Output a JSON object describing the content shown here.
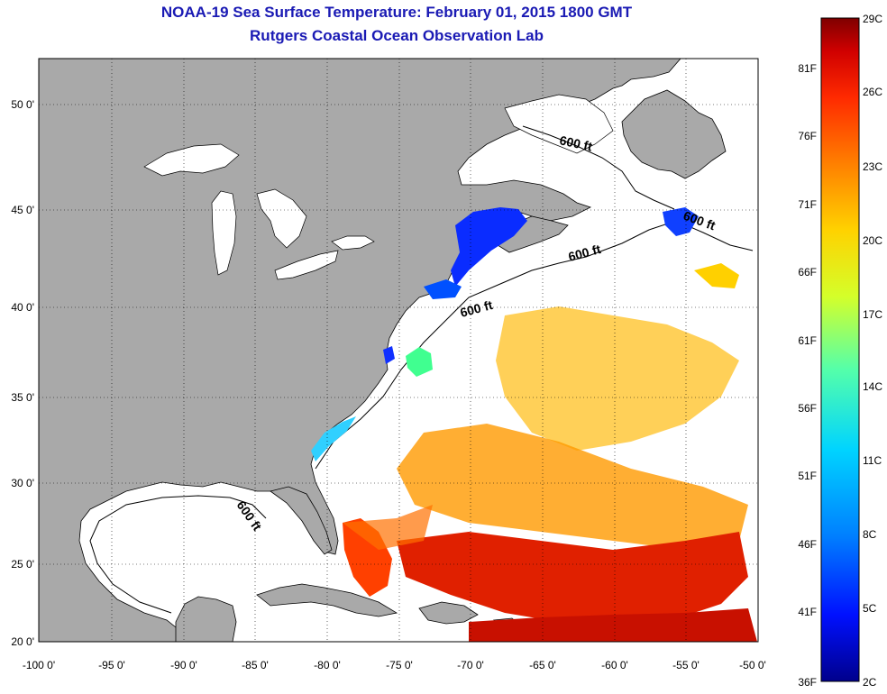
{
  "title": "NOAA-19 Sea Surface Temperature:  February 01, 2015 1800 GMT",
  "subtitle": "Rutgers Coastal Ocean Observation Lab",
  "lat_labels": [
    "50 0'",
    "45 0'",
    "40 0'",
    "35 0'",
    "30 0'",
    "25 0'",
    "20 0'"
  ],
  "lon_labels": [
    "-100 0'",
    "-95 0'",
    "-90 0'",
    "-85 0'",
    "-80 0'",
    "-75 0'",
    "-70 0'",
    "-65 0'",
    "-60 0'",
    "-55 0'",
    "-50 0'"
  ],
  "depth_label": "600 ft",
  "colorbar": {
    "fahrenheit": [
      "81F",
      "76F",
      "71F",
      "66F",
      "61F",
      "56F",
      "51F",
      "46F",
      "41F",
      "36F"
    ],
    "celsius": [
      "29C",
      "26C",
      "23C",
      "20C",
      "17C",
      "14C",
      "11C",
      "8C",
      "5C",
      "2C"
    ],
    "colors": [
      "#7f0000",
      "#d00000",
      "#ff2a00",
      "#ff8000",
      "#ffd200",
      "#d4ff2a",
      "#54ffaa",
      "#00d4ff",
      "#0080ff",
      "#0010ff",
      "#00008c"
    ]
  },
  "colors": {
    "land": "#a9a9a9",
    "ocean": "#ffffff",
    "title": "#1a1ab4"
  }
}
